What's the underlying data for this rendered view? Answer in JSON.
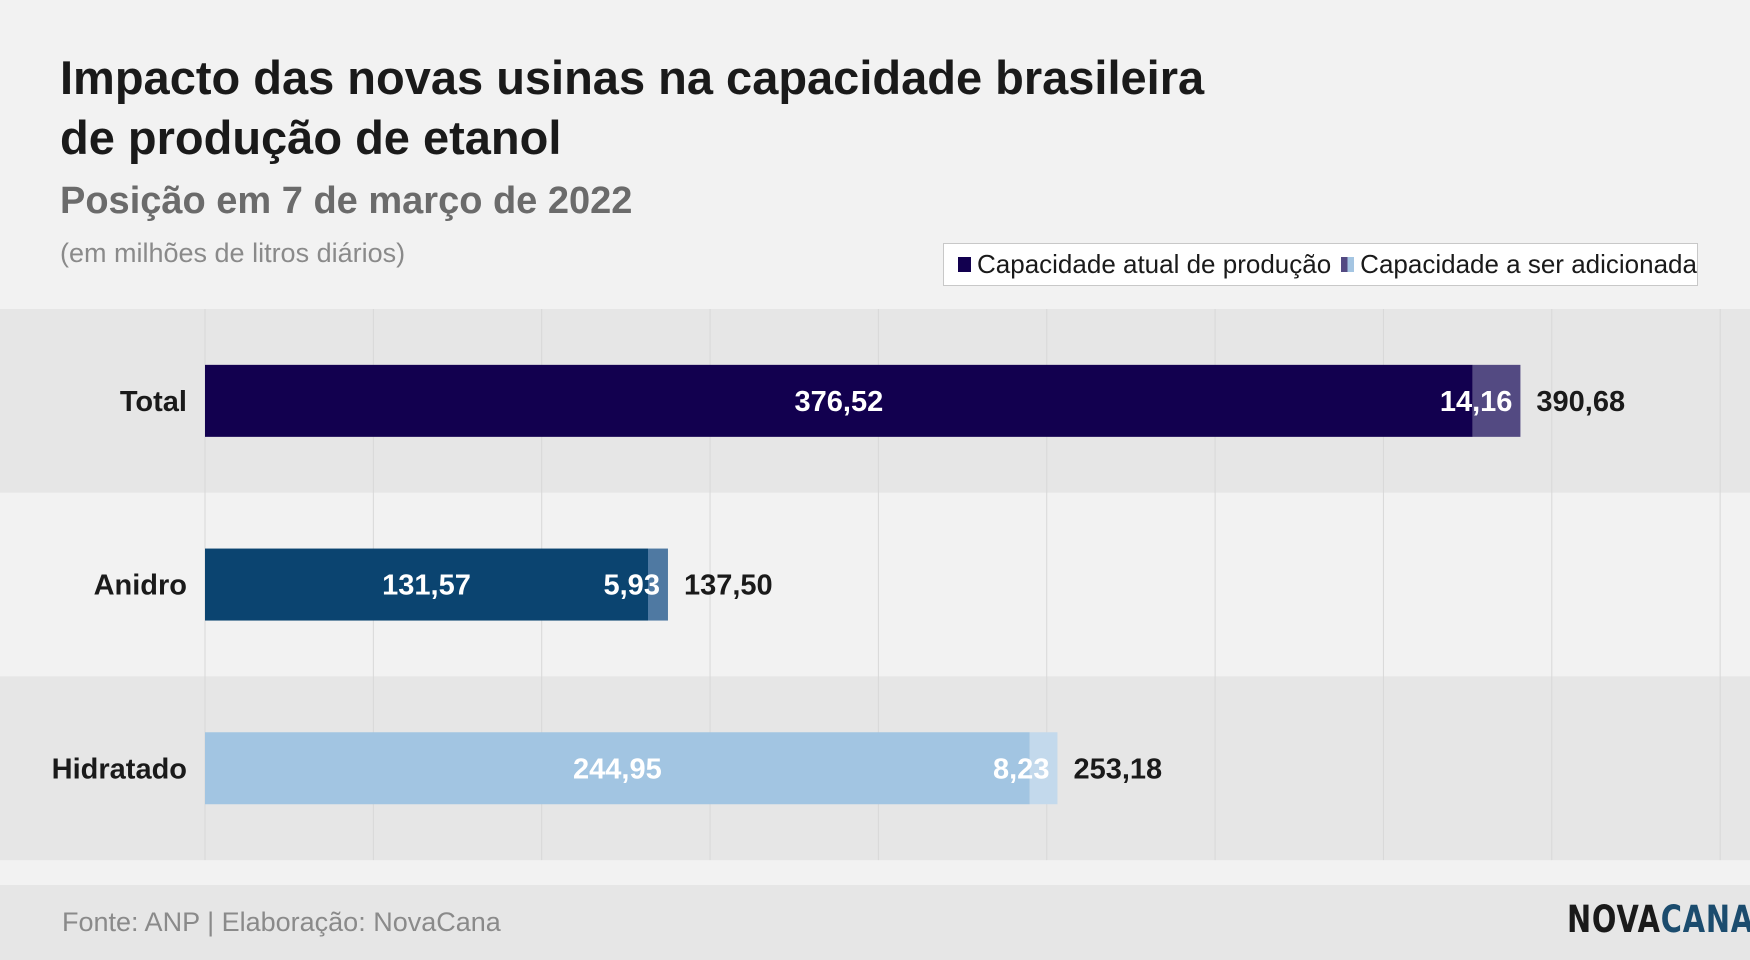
{
  "header": {
    "title": "Impacto das novas usinas na capacidade brasileira de produção de etanol",
    "subtitle": "Posição em 7 de março de 2022",
    "unit_note": "(em milhões de litros diários)"
  },
  "legend": {
    "current_label": "Capacidade atual de produção",
    "added_label": "Capacidade a ser adicionada"
  },
  "footer": {
    "source": "Fonte: ANP | Elaboração: NovaCana",
    "logo_part1": "NOVA",
    "logo_part2": "CANA"
  },
  "colors": {
    "band": "#e6e6e6",
    "grid": "#d8d8d8",
    "total_current": "#12004f",
    "total_added": "#534a82",
    "anidro_current": "#0b4470",
    "anidro_added": "#4f79a2",
    "hidratado_current": "#a2c5e2",
    "hidratado_added": "#c3d9ec"
  },
  "chart_data": {
    "type": "bar",
    "orientation": "horizontal",
    "stacked": true,
    "categories": [
      "Total",
      "Anidro",
      "Hidratado"
    ],
    "series": [
      {
        "name": "Capacidade atual de produção",
        "values": [
          376.52,
          131.57,
          244.95
        ],
        "labels": [
          "376,52",
          "131,57",
          "244,95"
        ]
      },
      {
        "name": "Capacidade a ser adicionada",
        "values": [
          14.16,
          5.93,
          8.23
        ],
        "labels": [
          "14,16",
          "5,93",
          "8,23"
        ]
      }
    ],
    "totals": [
      390.68,
      137.5,
      253.18
    ],
    "total_labels": [
      "390,68",
      "137,50",
      "253,18"
    ],
    "xlim": [
      0,
      450
    ],
    "grid": true,
    "legend_position": "top-right"
  }
}
